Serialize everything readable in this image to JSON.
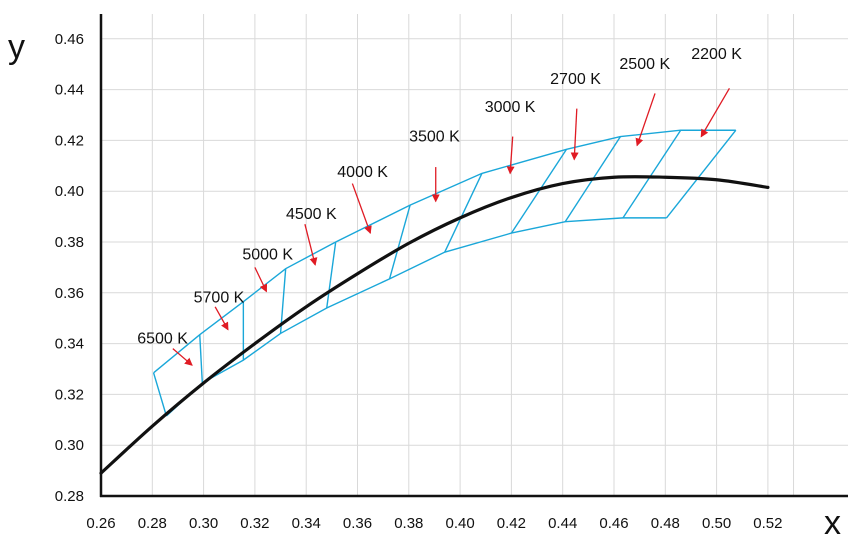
{
  "chart_data": {
    "type": "line",
    "title": "",
    "xlabel": "x",
    "ylabel": "y",
    "xlim": [
      0.26,
      0.53
    ],
    "ylim": [
      0.28,
      0.46
    ],
    "grid": true,
    "x_ticks": [
      "0.26",
      "0.28",
      "0.30",
      "0.32",
      "0.34",
      "0.36",
      "0.38",
      "0.40",
      "0.42",
      "0.44",
      "0.46",
      "0.48",
      "0.50",
      "0.52"
    ],
    "y_ticks": [
      "0.28",
      "0.30",
      "0.32",
      "0.34",
      "0.36",
      "0.38",
      "0.40",
      "0.42",
      "0.44",
      "0.46"
    ],
    "colors": {
      "locus": "#111111",
      "quadrangles": "#1aa7d9",
      "arrows": "#e01b24",
      "grid": "#d9d9d9"
    },
    "series": [
      {
        "kind": "planckian-locus",
        "x": [
          0.26,
          0.28,
          0.3,
          0.32,
          0.34,
          0.36,
          0.38,
          0.4,
          0.42,
          0.44,
          0.46,
          0.48,
          0.5,
          0.52
        ],
        "y": [
          0.289,
          0.3075,
          0.3245,
          0.34,
          0.3545,
          0.3675,
          0.3795,
          0.3895,
          0.3975,
          0.403,
          0.4055,
          0.4055,
          0.4045,
          0.4015
        ]
      }
    ],
    "outer_top_boundary": {
      "x": [
        0.2805,
        0.2985,
        0.3155,
        0.332,
        0.3515,
        0.3805,
        0.4085,
        0.4415,
        0.4625,
        0.486,
        0.5075
      ],
      "y": [
        0.3285,
        0.3435,
        0.3565,
        0.3695,
        0.38,
        0.3945,
        0.407,
        0.4165,
        0.4215,
        0.424,
        0.424
      ]
    },
    "outer_bottom_boundary": {
      "x": [
        0.2855,
        0.2995,
        0.3155,
        0.33,
        0.348,
        0.3725,
        0.394,
        0.42,
        0.441,
        0.4635,
        0.4805
      ],
      "y": [
        0.3115,
        0.3245,
        0.3335,
        0.344,
        0.354,
        0.3655,
        0.376,
        0.3835,
        0.388,
        0.3895,
        0.3895
      ]
    },
    "annotations": [
      {
        "label": "6500 K",
        "label_x": 0.284,
        "label_y": 0.3425,
        "arrow_from": [
          0.288,
          0.338
        ],
        "arrow_to": [
          0.2955,
          0.3315
        ]
      },
      {
        "label": "5700 K",
        "label_x": 0.306,
        "label_y": 0.3585,
        "arrow_from": [
          0.3045,
          0.3545
        ],
        "arrow_to": [
          0.3095,
          0.3455
        ]
      },
      {
        "label": "5000 K",
        "label_x": 0.325,
        "label_y": 0.3755,
        "arrow_from": [
          0.32,
          0.37
        ],
        "arrow_to": [
          0.3245,
          0.3605
        ]
      },
      {
        "label": "4500 K",
        "label_x": 0.342,
        "label_y": 0.3915,
        "arrow_from": [
          0.3395,
          0.387
        ],
        "arrow_to": [
          0.3435,
          0.371
        ]
      },
      {
        "label": "4000 K",
        "label_x": 0.362,
        "label_y": 0.408,
        "arrow_from": [
          0.358,
          0.403
        ],
        "arrow_to": [
          0.365,
          0.3835
        ]
      },
      {
        "label": "3500 K",
        "label_x": 0.39,
        "label_y": 0.422,
        "arrow_from": [
          0.3905,
          0.4095
        ],
        "arrow_to": [
          0.3905,
          0.396
        ]
      },
      {
        "label": "3000 K",
        "label_x": 0.4195,
        "label_y": 0.4335,
        "arrow_from": [
          0.4205,
          0.4215
        ],
        "arrow_to": [
          0.4195,
          0.407
        ]
      },
      {
        "label": "2700 K",
        "label_x": 0.445,
        "label_y": 0.4445,
        "arrow_from": [
          0.4455,
          0.4325
        ],
        "arrow_to": [
          0.4445,
          0.4125
        ]
      },
      {
        "label": "2500 K",
        "label_x": 0.472,
        "label_y": 0.4505,
        "arrow_from": [
          0.476,
          0.4385
        ],
        "arrow_to": [
          0.469,
          0.418
        ]
      },
      {
        "label": "2200 K",
        "label_x": 0.5,
        "label_y": 0.4545,
        "arrow_from": [
          0.505,
          0.4405
        ],
        "arrow_to": [
          0.494,
          0.4215
        ]
      }
    ]
  }
}
